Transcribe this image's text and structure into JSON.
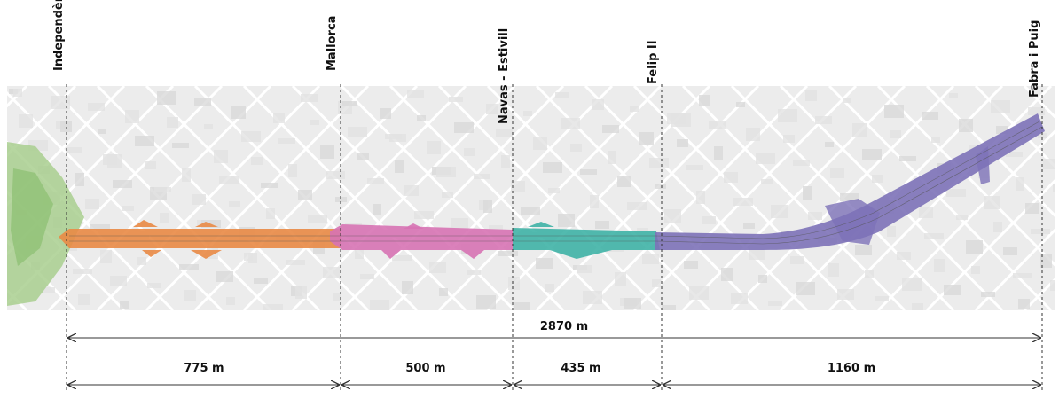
{
  "stations": [
    {
      "label": "Independència"
    },
    {
      "label": "Mallorca"
    },
    {
      "label": "Navas - Estivill"
    },
    {
      "label": "Felip II"
    },
    {
      "label": "Fabra i Puig"
    }
  ],
  "segments": [
    {
      "label": "775 m",
      "color": "#e98a45"
    },
    {
      "label": "500 m",
      "color": "#d773b4"
    },
    {
      "label": "435 m",
      "color": "#3fb3a6"
    },
    {
      "label": "1160 m",
      "color": "#7d72b8"
    }
  ],
  "total": {
    "label": "2870 m"
  },
  "colors": {
    "map_background": "#ececec",
    "park": "#a9cf8f",
    "streets": "#ffffff",
    "dimension_line": "#333333",
    "station_line": "#333333"
  }
}
